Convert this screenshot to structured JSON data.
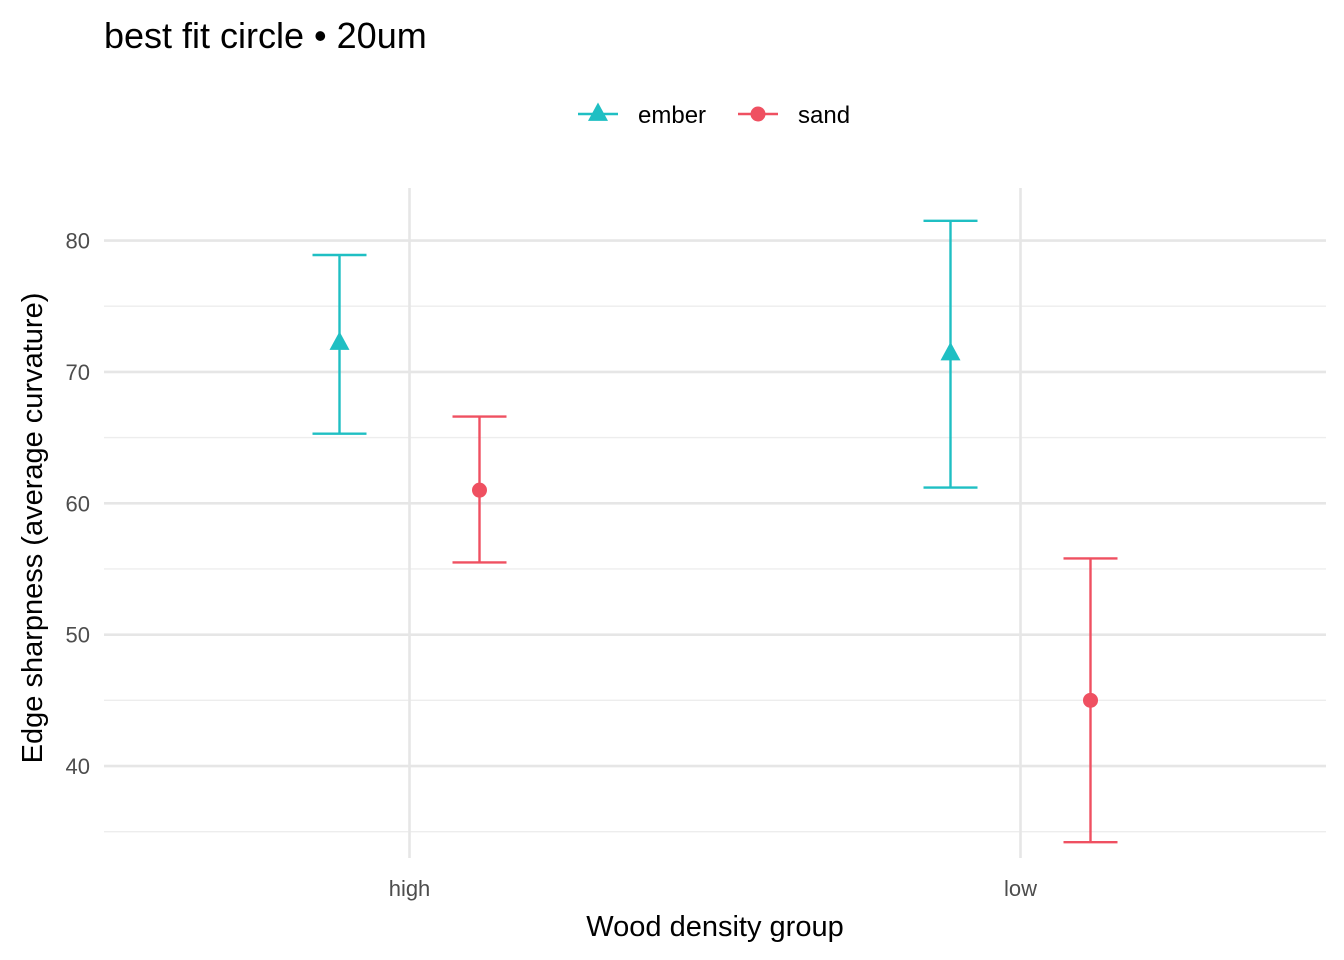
{
  "chart_data": {
    "type": "scatter",
    "title": "best fit circle • 20um",
    "xlabel": "Wood density group",
    "ylabel": "Edge sharpness (average curvature)",
    "categories": [
      "high",
      "low"
    ],
    "ylim": [
      33,
      84
    ],
    "yticks": [
      40,
      50,
      60,
      70,
      80
    ],
    "grid": true,
    "legend_position": "top",
    "error_bars": true,
    "series": [
      {
        "name": "ember",
        "color": "#1fbfc3",
        "marker": "triangle",
        "values": [
          72.2,
          71.4
        ],
        "lower": [
          65.3,
          61.2
        ],
        "upper": [
          78.9,
          81.5
        ]
      },
      {
        "name": "sand",
        "color": "#ef5061",
        "marker": "circle",
        "values": [
          61.0,
          45.0
        ],
        "lower": [
          55.5,
          34.2
        ],
        "upper": [
          66.6,
          55.8
        ]
      }
    ]
  }
}
